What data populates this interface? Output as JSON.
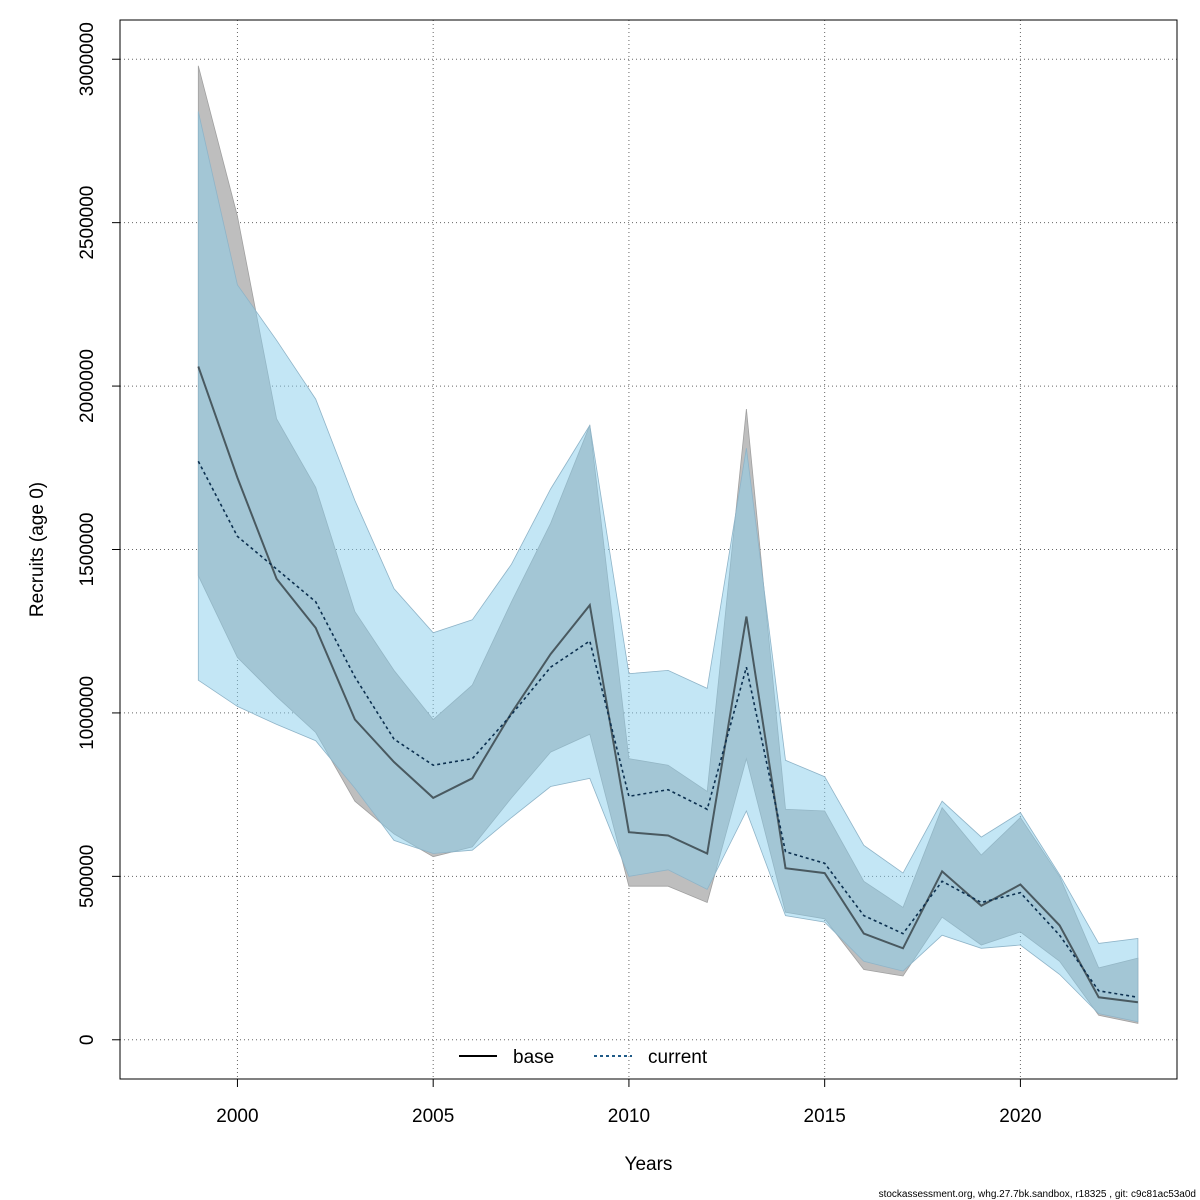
{
  "chart_data": {
    "type": "line",
    "xlabel": "Years",
    "ylabel": "Recruits (age 0)",
    "xlim": [
      1997,
      2024
    ],
    "ylim": [
      -120000,
      3120000
    ],
    "xticks": [
      2000,
      2005,
      2010,
      2015,
      2020
    ],
    "yticks": [
      0,
      500000,
      1000000,
      1500000,
      2000000,
      2500000,
      3000000
    ],
    "grid": true,
    "legend_position": "bottom",
    "x": [
      1999,
      2000,
      2001,
      2002,
      2003,
      2004,
      2005,
      2006,
      2007,
      2008,
      2009,
      2010,
      2011,
      2012,
      2013,
      2014,
      2015,
      2016,
      2017,
      2018,
      2019,
      2020,
      2021,
      2022,
      2023
    ],
    "series": [
      {
        "name": "base",
        "color": "#000000",
        "line_style": "solid",
        "band_color": "#bebebe",
        "values": [
          2060000,
          1720000,
          1410000,
          1260000,
          980000,
          850000,
          740000,
          800000,
          1000000,
          1180000,
          1330000,
          635000,
          625000,
          570000,
          1295000,
          525000,
          510000,
          325000,
          280000,
          515000,
          410000,
          475000,
          350000,
          130000,
          115000
        ],
        "lower": [
          1420000,
          1170000,
          1050000,
          940000,
          730000,
          630000,
          560000,
          590000,
          740000,
          880000,
          935000,
          470000,
          470000,
          420000,
          860000,
          390000,
          370000,
          215000,
          195000,
          375000,
          290000,
          330000,
          240000,
          75000,
          50000
        ],
        "upper": [
          2980000,
          2520000,
          1900000,
          1690000,
          1310000,
          1130000,
          980000,
          1085000,
          1340000,
          1580000,
          1880000,
          860000,
          840000,
          760000,
          1930000,
          705000,
          700000,
          485000,
          405000,
          710000,
          565000,
          680000,
          500000,
          220000,
          250000
        ]
      },
      {
        "name": "current",
        "color": "#1f5a87",
        "line_style": "dashed",
        "band_color": "#87ceeb",
        "values": [
          1770000,
          1540000,
          1440000,
          1340000,
          1110000,
          920000,
          840000,
          860000,
          995000,
          1140000,
          1220000,
          745000,
          765000,
          705000,
          1140000,
          575000,
          540000,
          380000,
          325000,
          485000,
          420000,
          450000,
          320000,
          150000,
          130000
        ],
        "lower": [
          1100000,
          1020000,
          965000,
          915000,
          770000,
          610000,
          570000,
          580000,
          680000,
          775000,
          800000,
          500000,
          520000,
          460000,
          700000,
          380000,
          360000,
          240000,
          210000,
          320000,
          280000,
          290000,
          200000,
          80000,
          55000
        ],
        "upper": [
          2840000,
          2310000,
          2140000,
          1960000,
          1650000,
          1380000,
          1245000,
          1285000,
          1455000,
          1685000,
          1880000,
          1120000,
          1130000,
          1075000,
          1810000,
          855000,
          805000,
          595000,
          510000,
          730000,
          620000,
          695000,
          505000,
          295000,
          310000
        ]
      }
    ]
  },
  "footer": "stockassessment.org, whg.27.7bk.sandbox, r18325 , git: c9c81ac53a0d"
}
